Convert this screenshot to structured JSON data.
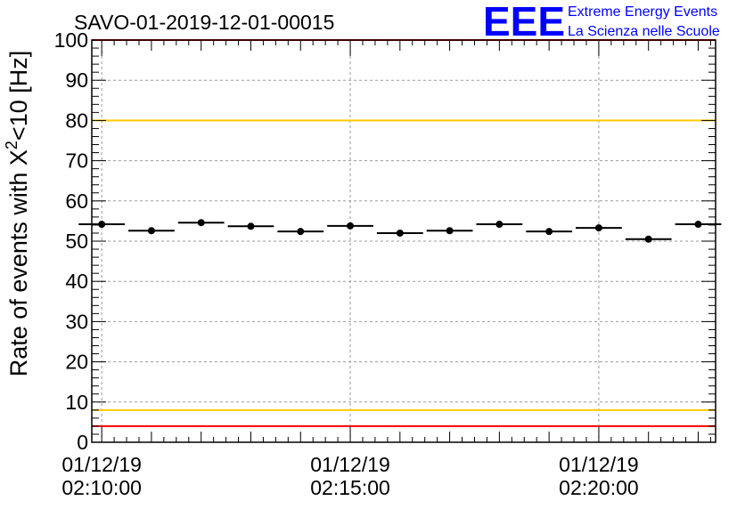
{
  "chart_data": {
    "type": "scatter",
    "title": "SAVO-01-2019-12-01-00015",
    "ylabel_main": "Rate of events with X",
    "ylabel_sup": "2",
    "ylabel_tail": "<10 [Hz]",
    "xlabel": "",
    "ylim": [
      0,
      100
    ],
    "yticks": [
      "0",
      "10",
      "20",
      "30",
      "40",
      "50",
      "60",
      "70",
      "80",
      "90",
      "100"
    ],
    "x_range_minutes": [
      -0.2,
      12.35
    ],
    "x_tick_labels": [
      {
        "date": "01/12/19",
        "time": "02:10:00",
        "minute": 0
      },
      {
        "date": "01/12/19",
        "time": "02:15:00",
        "minute": 5
      },
      {
        "date": "01/12/19",
        "time": "02:20:00",
        "minute": 10
      }
    ],
    "bin_width_minutes": 1,
    "points": [
      {
        "minute": 0,
        "value": 54.2
      },
      {
        "minute": 1,
        "value": 52.6
      },
      {
        "minute": 2,
        "value": 54.6
      },
      {
        "minute": 3,
        "value": 53.7
      },
      {
        "minute": 4,
        "value": 52.4
      },
      {
        "minute": 5,
        "value": 53.8
      },
      {
        "minute": 6,
        "value": 52.0
      },
      {
        "minute": 7,
        "value": 52.6
      },
      {
        "minute": 8,
        "value": 54.2
      },
      {
        "minute": 9,
        "value": 52.4
      },
      {
        "minute": 10,
        "value": 53.3
      },
      {
        "minute": 11,
        "value": 50.5
      },
      {
        "minute": 12,
        "value": 54.2
      }
    ],
    "reference_lines": [
      {
        "value": 100,
        "color": "#ff0000"
      },
      {
        "value": 80,
        "color": "#ffcc00"
      },
      {
        "value": 8,
        "color": "#ffcc00"
      },
      {
        "value": 4,
        "color": "#ff0000"
      }
    ],
    "grid": true
  },
  "logo": {
    "big": "EEE",
    "line1": "Extreme Energy Events",
    "line2": "La Scienza nelle Scuole",
    "color": "#0000ff"
  }
}
